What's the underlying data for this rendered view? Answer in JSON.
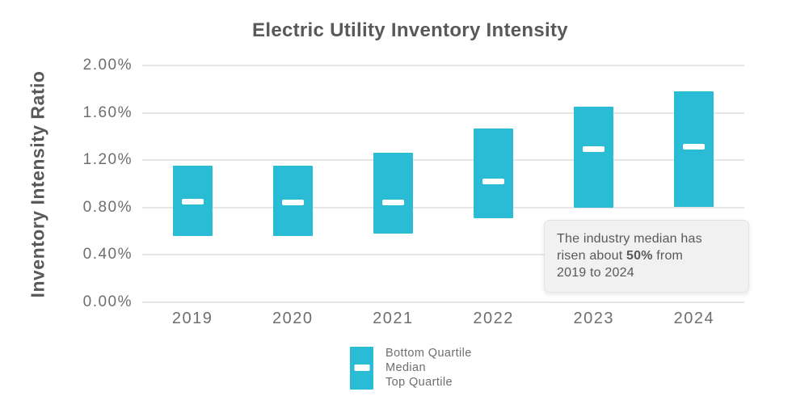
{
  "chart_data": {
    "type": "bar",
    "variant": "floating quartile-range bars with median markers",
    "title": "Electric Utility Inventory Intensity",
    "ylabel": "Inventory Intensity Ratio",
    "xlabel": "",
    "categories": [
      "2019",
      "2020",
      "2021",
      "2022",
      "2023",
      "2024"
    ],
    "series": [
      {
        "name": "Bottom Quartile",
        "values": [
          0.56,
          0.56,
          0.58,
          0.71,
          0.8,
          0.8
        ]
      },
      {
        "name": "Median",
        "values": [
          0.85,
          0.84,
          0.84,
          1.02,
          1.29,
          1.31
        ]
      },
      {
        "name": "Top Quartile",
        "values": [
          1.15,
          1.15,
          1.26,
          1.47,
          1.65,
          1.78
        ]
      }
    ],
    "units": "percent",
    "ylim": [
      0,
      2.0
    ],
    "yticks": [
      {
        "value": 0.0,
        "label": "0.00%"
      },
      {
        "value": 0.4,
        "label": "0.40%"
      },
      {
        "value": 0.8,
        "label": "0.80%"
      },
      {
        "value": 1.2,
        "label": "1.20%"
      },
      {
        "value": 1.6,
        "label": "1.60%"
      },
      {
        "value": 2.0,
        "label": "2.00%"
      }
    ],
    "grid": true,
    "legend_position": "bottom-center",
    "colors": {
      "bar": "#29bcd4",
      "median_marker": "#ffffff",
      "gridline": "#e6e6e7",
      "title_text": "#58595b",
      "tick_text": "#6d6e71",
      "annotation_bg": "#f1f1f2",
      "annotation_text": "#58595b"
    }
  },
  "annotation": {
    "line1": "The industry median has",
    "line2_pre": "risen about ",
    "line2_bold": "50%",
    "line2_post": " from",
    "line3": "2019 to 2024"
  }
}
